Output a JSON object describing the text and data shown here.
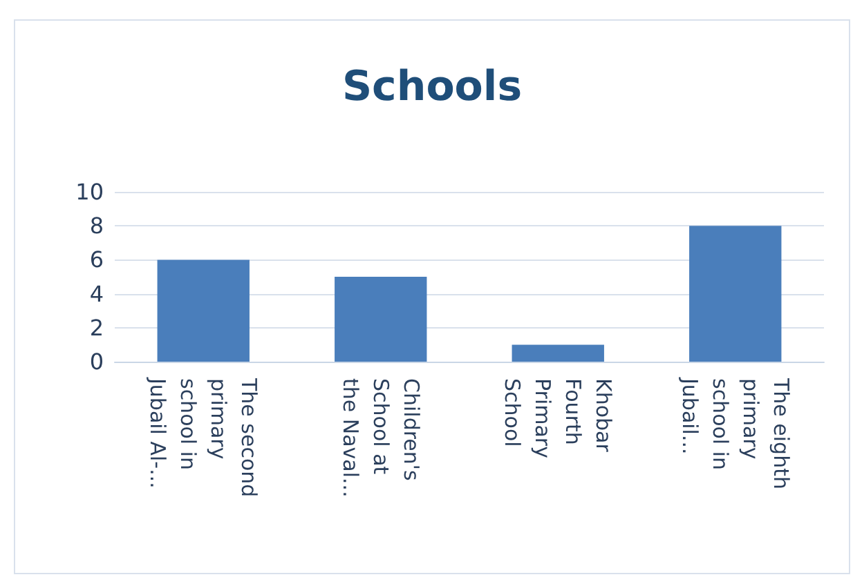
{
  "chart_data": {
    "type": "bar",
    "title": "Schools",
    "categories": [
      "The second primary school in Jubail Al-...",
      "Children's School at the Naval...",
      "Khobar Fourth Primary School",
      "The eighth primary school in Jubail..."
    ],
    "values": [
      6,
      5,
      1,
      8
    ],
    "color": "#4a7ebb",
    "ylim": [
      0,
      10
    ],
    "yticks": [
      0,
      2,
      4,
      6,
      8,
      10
    ],
    "grid": "y"
  }
}
